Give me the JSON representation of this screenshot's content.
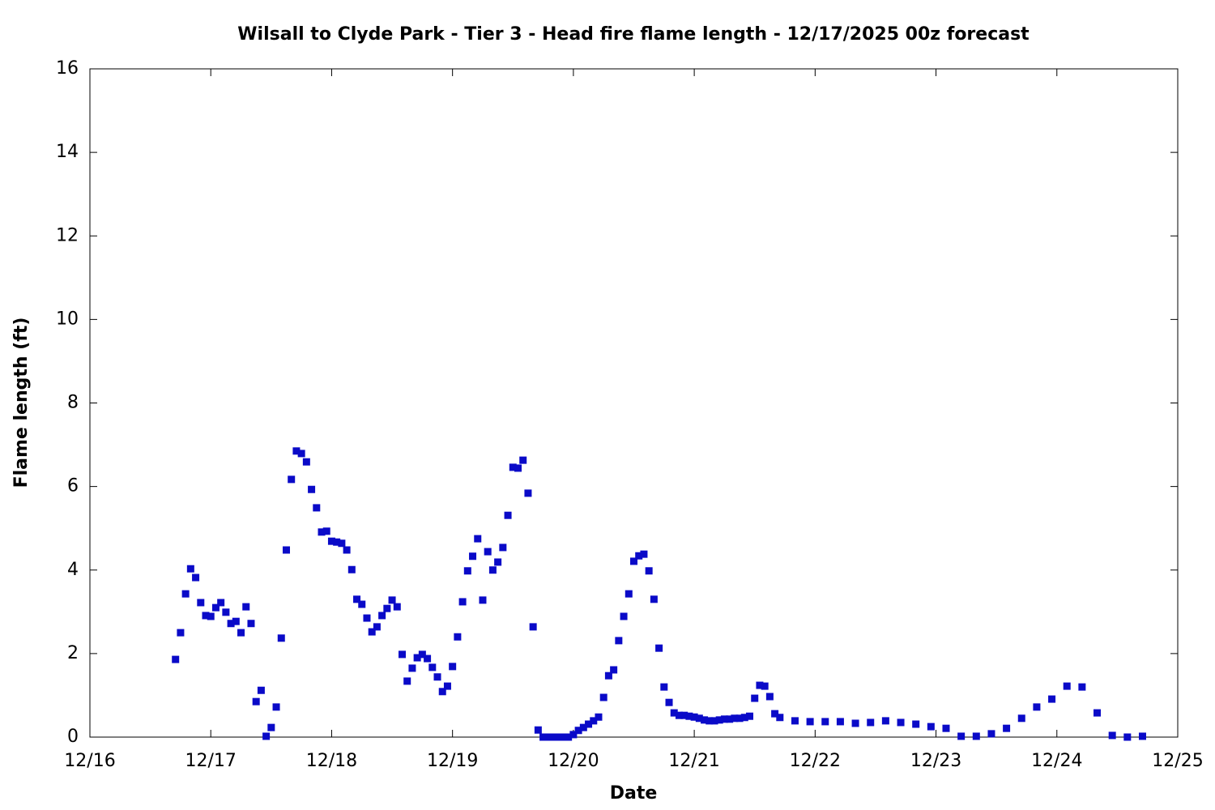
{
  "chart_data": {
    "type": "scatter",
    "title": "Wilsall to Clyde Park - Tier 3 - Head fire flame length - 12/17/2025 00z forecast",
    "x_label": "Date",
    "y_label": "Flame length (ft)",
    "color": "#0a0ac8",
    "xlim": [
      0,
      216
    ],
    "xticks": [
      {
        "value": 0,
        "label": "12/16"
      },
      {
        "value": 24,
        "label": "12/17"
      },
      {
        "value": 48,
        "label": "12/18"
      },
      {
        "value": 72,
        "label": "12/19"
      },
      {
        "value": 96,
        "label": "12/20"
      },
      {
        "value": 120,
        "label": "12/21"
      },
      {
        "value": 144,
        "label": "12/22"
      },
      {
        "value": 168,
        "label": "12/23"
      },
      {
        "value": 192,
        "label": "12/24"
      },
      {
        "value": 216,
        "label": "12/25"
      }
    ],
    "ylim": [
      0,
      16
    ],
    "yticks": [
      0,
      2,
      4,
      6,
      8,
      10,
      12,
      14,
      16
    ],
    "x": [
      17,
      18,
      19,
      20,
      21,
      22,
      23,
      24,
      25,
      26,
      27,
      28,
      29,
      30,
      31,
      32,
      33,
      34,
      35,
      36,
      37,
      38,
      39,
      40,
      41,
      42,
      43,
      44,
      45,
      46,
      47,
      48,
      49,
      50,
      51,
      52,
      53,
      54,
      55,
      56,
      57,
      58,
      59,
      60,
      61,
      62,
      63,
      64,
      65,
      66,
      67,
      68,
      69,
      70,
      71,
      72,
      73,
      74,
      75,
      76,
      77,
      78,
      79,
      80,
      81,
      82,
      83,
      84,
      85,
      86,
      87,
      88,
      89,
      90,
      91,
      92,
      93,
      94,
      95,
      96,
      97,
      98,
      99,
      100,
      101,
      102,
      103,
      104,
      105,
      106,
      107,
      108,
      109,
      110,
      111,
      112,
      113,
      114,
      115,
      116,
      117,
      118,
      119,
      120,
      121,
      122,
      123,
      124,
      125,
      126,
      127,
      128,
      129,
      130,
      131,
      132,
      133,
      134,
      135,
      136,
      137,
      140,
      143,
      146,
      149,
      152,
      155,
      158,
      161,
      164,
      167,
      170,
      173,
      176,
      179,
      182,
      185,
      188,
      191,
      194,
      197,
      200,
      203,
      206,
      209
    ],
    "values": [
      1.86,
      2.5,
      3.43,
      4.03,
      3.82,
      3.22,
      2.91,
      2.89,
      3.1,
      3.22,
      2.99,
      2.72,
      2.77,
      2.5,
      3.12,
      2.72,
      0.85,
      1.12,
      0.02,
      0.23,
      0.72,
      2.37,
      4.48,
      6.17,
      6.85,
      6.79,
      6.59,
      5.93,
      5.49,
      4.91,
      4.93,
      4.69,
      4.67,
      4.64,
      4.48,
      4.01,
      3.3,
      3.18,
      2.85,
      2.52,
      2.64,
      2.91,
      3.08,
      3.28,
      3.12,
      1.98,
      1.34,
      1.65,
      1.9,
      1.98,
      1.88,
      1.67,
      1.44,
      1.09,
      1.22,
      1.69,
      2.4,
      3.24,
      3.98,
      4.33,
      4.75,
      3.28,
      4.44,
      4.0,
      4.19,
      4.54,
      5.31,
      6.46,
      6.44,
      6.63,
      5.84,
      2.64,
      0.17,
      0,
      0,
      0,
      0,
      0,
      0,
      0.06,
      0.16,
      0.23,
      0.31,
      0.39,
      0.48,
      0.95,
      1.47,
      1.61,
      2.31,
      2.89,
      3.43,
      4.21,
      4.34,
      4.38,
      3.98,
      3.3,
      2.13,
      1.2,
      0.83,
      0.58,
      0.52,
      0.52,
      0.5,
      0.48,
      0.45,
      0.41,
      0.39,
      0.39,
      0.41,
      0.43,
      0.43,
      0.45,
      0.45,
      0.47,
      0.5,
      0.93,
      1.24,
      1.22,
      0.97,
      0.56,
      0.47,
      0.39,
      0.37,
      0.37,
      0.37,
      0.33,
      0.35,
      0.39,
      0.35,
      0.31,
      0.25,
      0.21,
      0.02,
      0.02,
      0.08,
      0.21,
      0.45,
      0.72,
      0.91,
      1.22,
      1.2,
      0.58,
      0.04,
      0,
      0.02
    ]
  }
}
